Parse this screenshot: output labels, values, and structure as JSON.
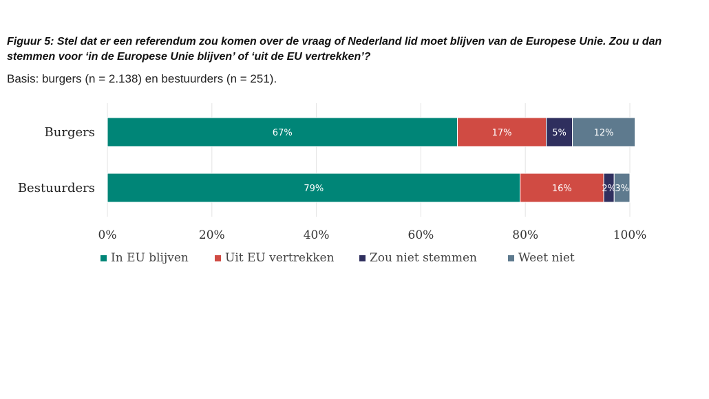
{
  "title": "Figuur 5:  Stel dat er een referendum zou komen over de vraag of Nederland lid moet blijven van de Europese Unie. Zou u dan stemmen voor ‘in de Europese Unie blijven’ of ‘uit de EU vertrekken’?",
  "subtitle": "Basis: burgers (n = 2.138) en bestuurders (n = 251).",
  "chart_data": {
    "type": "bar",
    "orientation": "horizontal",
    "stacked": true,
    "categories": [
      "Burgers",
      "Bestuurders"
    ],
    "series": [
      {
        "name": "In EU blijven",
        "values": [
          67,
          79
        ],
        "labels": [
          "67%",
          "79%"
        ],
        "color": "#008577"
      },
      {
        "name": "Uit EU vertrekken",
        "values": [
          17,
          16
        ],
        "labels": [
          "17%",
          "16%"
        ],
        "color": "#d04b43"
      },
      {
        "name": "Zou niet stemmen",
        "values": [
          5,
          2
        ],
        "labels": [
          "5%",
          "2%"
        ],
        "color": "#2f2f5e"
      },
      {
        "name": "Weet niet",
        "values": [
          12,
          3
        ],
        "labels": [
          "12%",
          "3%"
        ],
        "color": "#5e7a8e"
      }
    ],
    "xlim": [
      0,
      100
    ],
    "xticks": [
      "0%",
      "20%",
      "40%",
      "60%",
      "80%",
      "100%"
    ],
    "grid": true,
    "legend_position": "bottom"
  }
}
